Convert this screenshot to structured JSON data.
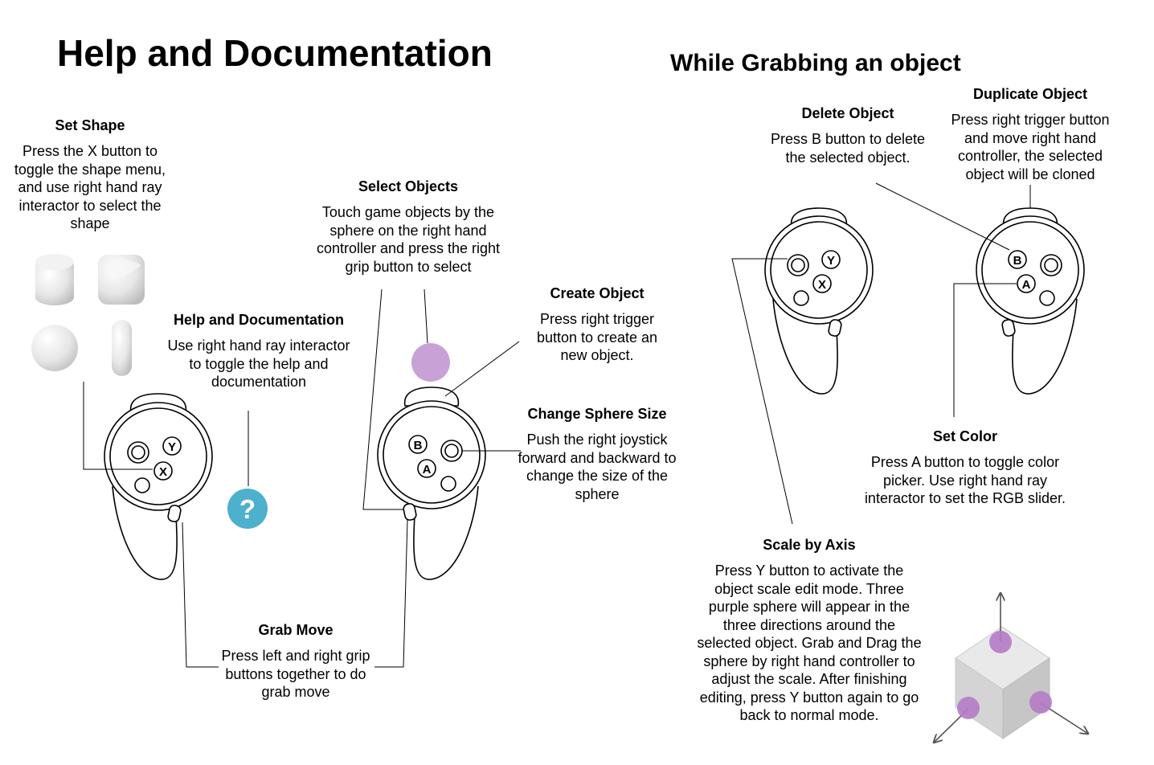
{
  "main_title": "Help and Documentation",
  "grab_title": "While Grabbing an object",
  "labels": {
    "set_shape": {
      "heading": "Set Shape",
      "body": "Press the X button to toggle the shape menu, and use right hand ray interactor to select the shape"
    },
    "help_doc": {
      "heading": "Help and Documentation",
      "body": "Use right hand ray interactor to toggle the help and documentation"
    },
    "select_objects": {
      "heading": "Select Objects",
      "body": "Touch game objects by the sphere on the right hand controller and press the right grip button to select"
    },
    "create_object": {
      "heading": "Create Object",
      "body": "Press right trigger button to create an new object."
    },
    "change_sphere": {
      "heading": "Change Sphere Size",
      "body": "Push the right joystick forward and backward to change the size of the sphere"
    },
    "grab_move": {
      "heading": "Grab Move",
      "body": "Press left and right grip buttons together to do grab move"
    },
    "delete_object": {
      "heading": "Delete Object",
      "body": "Press B button to delete the selected object."
    },
    "duplicate_object": {
      "heading": "Duplicate Object",
      "body": "Press right trigger button and move right hand controller, the selected object will be cloned"
    },
    "set_color": {
      "heading": "Set Color",
      "body": "Press A button to toggle color picker. Use right hand ray interactor to set the RGB slider."
    },
    "scale_axis": {
      "heading": "Scale by Axis",
      "body": "Press Y button to activate the object scale edit mode. Three purple sphere will appear in the three directions around the selected object. Grab and Drag the sphere by right hand controller to adjust the scale. After finishing editing, press Y button again to go back to normal mode."
    }
  },
  "buttons": {
    "x": "X",
    "y": "Y",
    "a": "A",
    "b": "B"
  },
  "help_icon": "?",
  "colors": {
    "purple": "#C8A2D6",
    "help_blue": "#4DB0CC",
    "cube_gray": "#D9D9D9"
  }
}
